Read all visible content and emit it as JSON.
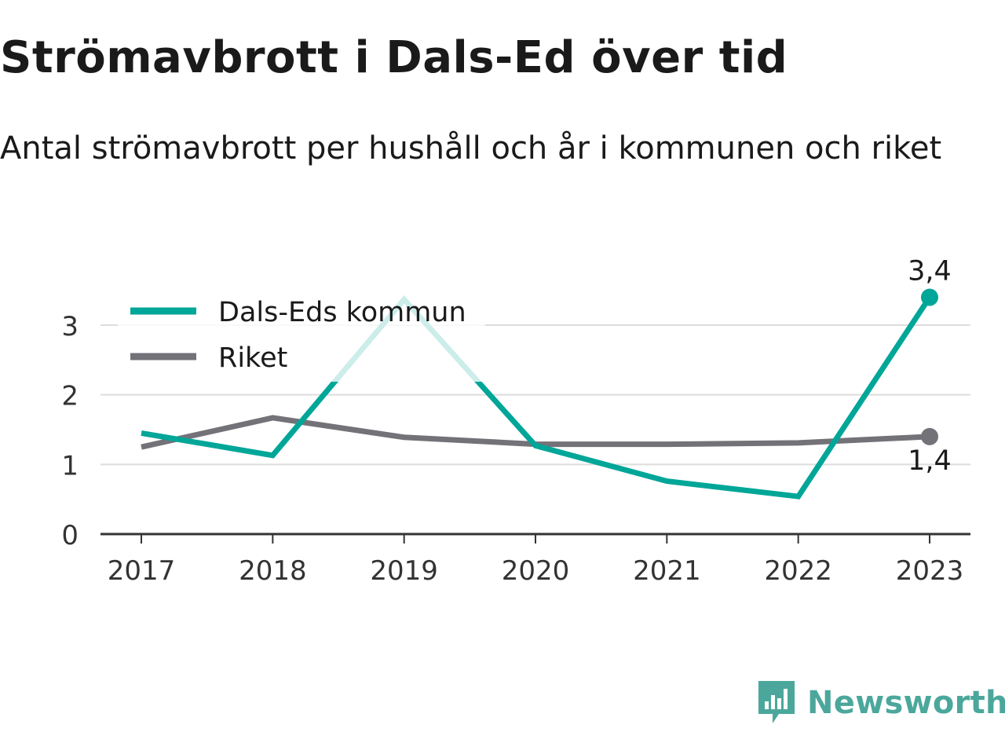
{
  "title": "Strömavbrott i Dals-Ed över tid",
  "subtitle": "Antal strömavbrott per hushåll och år i kommunen och riket",
  "brand": "Newsworthy",
  "colors": {
    "dals_ed": "#00a698",
    "riket": "#737278",
    "grid": "#dddddd",
    "axis": "#333333"
  },
  "chart_data": {
    "type": "line",
    "x": [
      "2017",
      "2018",
      "2019",
      "2020",
      "2021",
      "2022",
      "2023"
    ],
    "ylim": [
      0,
      3.8
    ],
    "yticks": [
      "0",
      "1",
      "2",
      "3"
    ],
    "series": [
      {
        "name": "Dals-Eds kommun",
        "values": [
          1.45,
          1.13,
          3.37,
          1.27,
          0.76,
          0.54,
          3.4
        ],
        "end_label": "3,4"
      },
      {
        "name": "Riket",
        "values": [
          1.25,
          1.67,
          1.39,
          1.29,
          1.29,
          1.31,
          1.4
        ],
        "end_label": "1,4"
      }
    ],
    "legend": "top-left",
    "grid": true
  }
}
